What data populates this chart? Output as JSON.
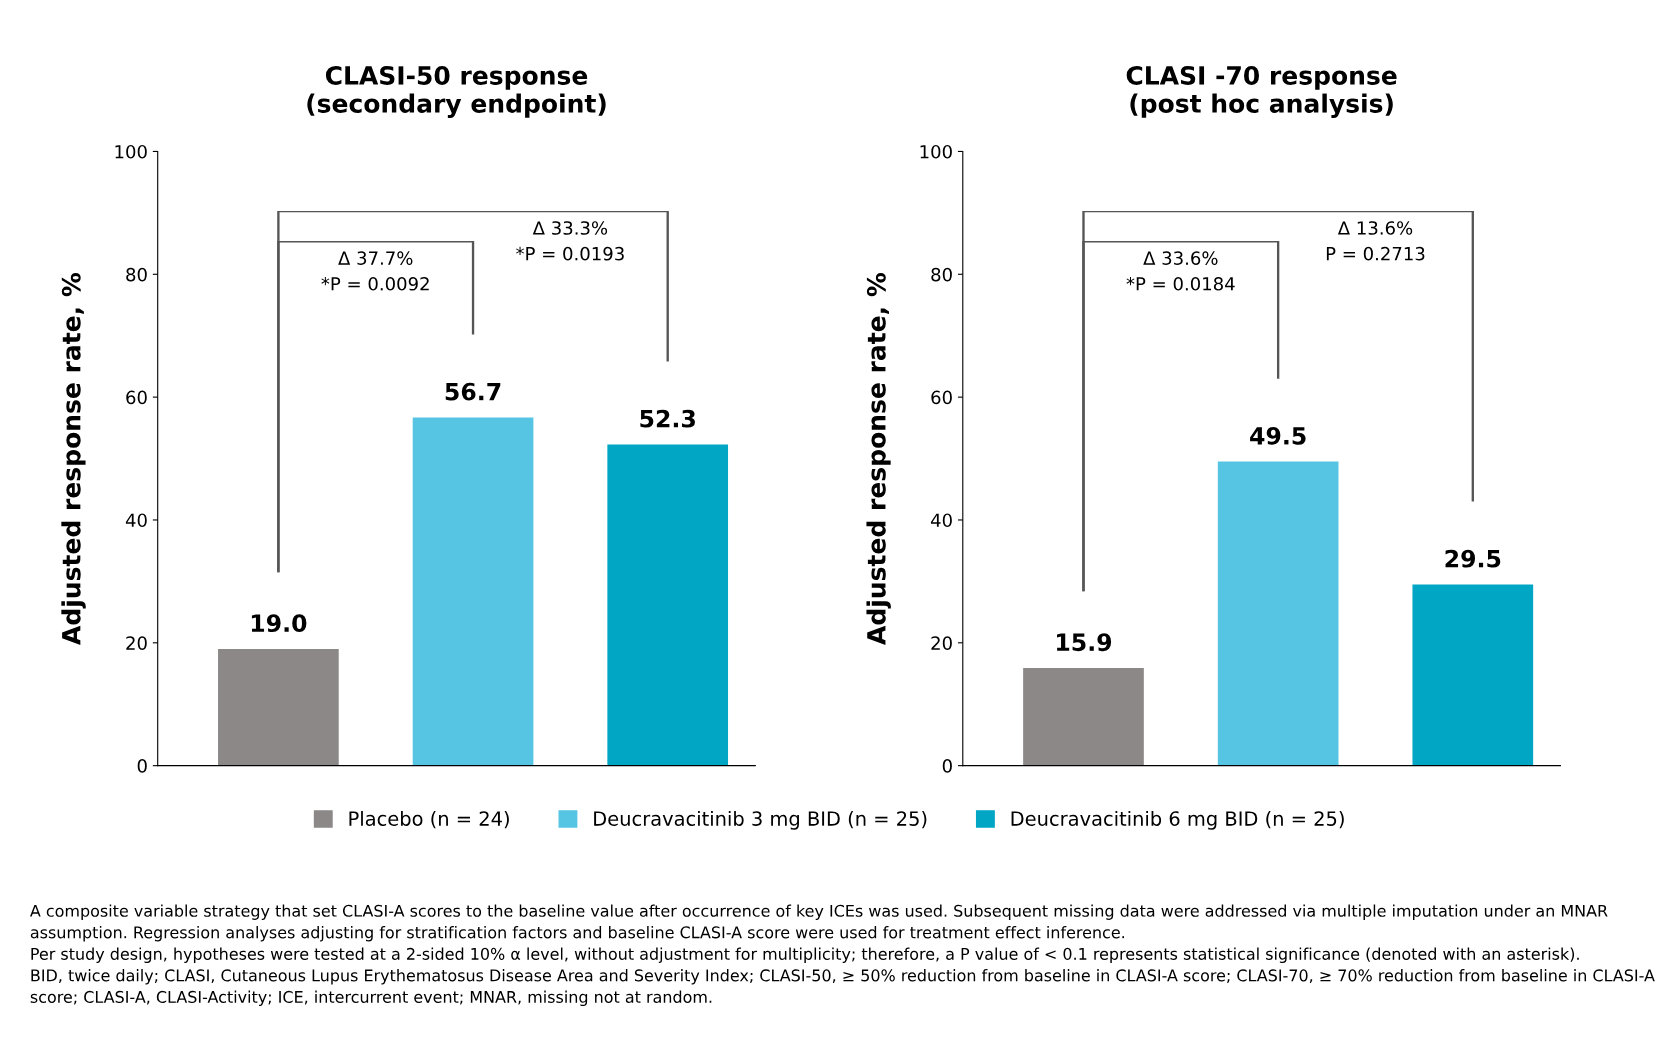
{
  "chart_data": [
    {
      "type": "bar",
      "title": "CLASI-50 response\n(secondary endpoint)",
      "ylabel": "Adjusted response rate, %",
      "categories": [
        null
      ],
      "series": [
        {
          "name": "Placebo (n = 24)",
          "color": "#8c8888",
          "values": [
            19.0
          ],
          "value_labels": [
            "19.0"
          ]
        },
        {
          "name": "Deucravacitinib 3 mg BID (n = 25)",
          "color": "#56c5e3",
          "values": [
            56.7
          ],
          "value_labels": [
            "56.7"
          ]
        },
        {
          "name": "Deucravacitinib 6 mg BID (n = 25)",
          "color": "#00a6c4",
          "values": [
            52.3
          ],
          "value_labels": [
            "52.3"
          ]
        }
      ],
      "ylim": [
        0,
        100
      ],
      "yticks": [
        0,
        20,
        40,
        60,
        80,
        100
      ],
      "grid": false,
      "legend": "bottom",
      "annotations": [
        "Δ 37.7%\n*P = 0.0092",
        "Δ 33.3%\n*P = 0.0193",
        "A composite variable strategy that set CLASI-A scores to the baseline value after occurrence of key ICEs was used. Subsequent missing data were addressed via multiple imputation under an MNAR assumption. Regression analyses adjusting for stratification factors and baseline CLASI-A score were used for treatment effect inference.\nPer study design, hypotheses were tested at a 2-sided 10% α level, without adjustment for multiplicity; therefore, a P value of < 0.1 represents statistical significance (denoted with an asterisk).\nBID, twice daily; CLASI, Cutaneous Lupus Erythematosus Disease Area and Severity Index; CLASI-50, ≥ 50% reduction from baseline in CLASI-A score; CLASI-70, ≥ 70% reduction from baseline in CLASI-A score; CLASI-A, CLASI-Activity; ICE, intercurrent event; MNAR, missing not at random."
      ]
    },
    {
      "type": "bar",
      "title": "CLASI -70 response\n(post hoc analysis)",
      "ylabel": "Adjusted response rate, %",
      "categories": [
        null
      ],
      "series": [
        {
          "name": "Placebo (n = 24)",
          "color": "#8c8888",
          "values": [
            15.9
          ],
          "value_labels": [
            "15.9"
          ]
        },
        {
          "name": "Deucravacitinib 3 mg BID (n = 25)",
          "color": "#56c5e3",
          "values": [
            49.5
          ],
          "value_labels": [
            "49.5"
          ]
        },
        {
          "name": "Deucravacitinib 6 mg BID (n = 25)",
          "color": "#00a6c4",
          "values": [
            29.5
          ],
          "value_labels": [
            "29.5"
          ]
        }
      ],
      "ylim": [
        0,
        100
      ],
      "yticks": [
        0,
        20,
        40,
        60,
        80,
        100
      ],
      "grid": false,
      "annotations": [
        "Δ 33.6%\n*P = 0.0184",
        "Δ 13.6%\nP = 0.2713"
      ]
    }
  ]
}
